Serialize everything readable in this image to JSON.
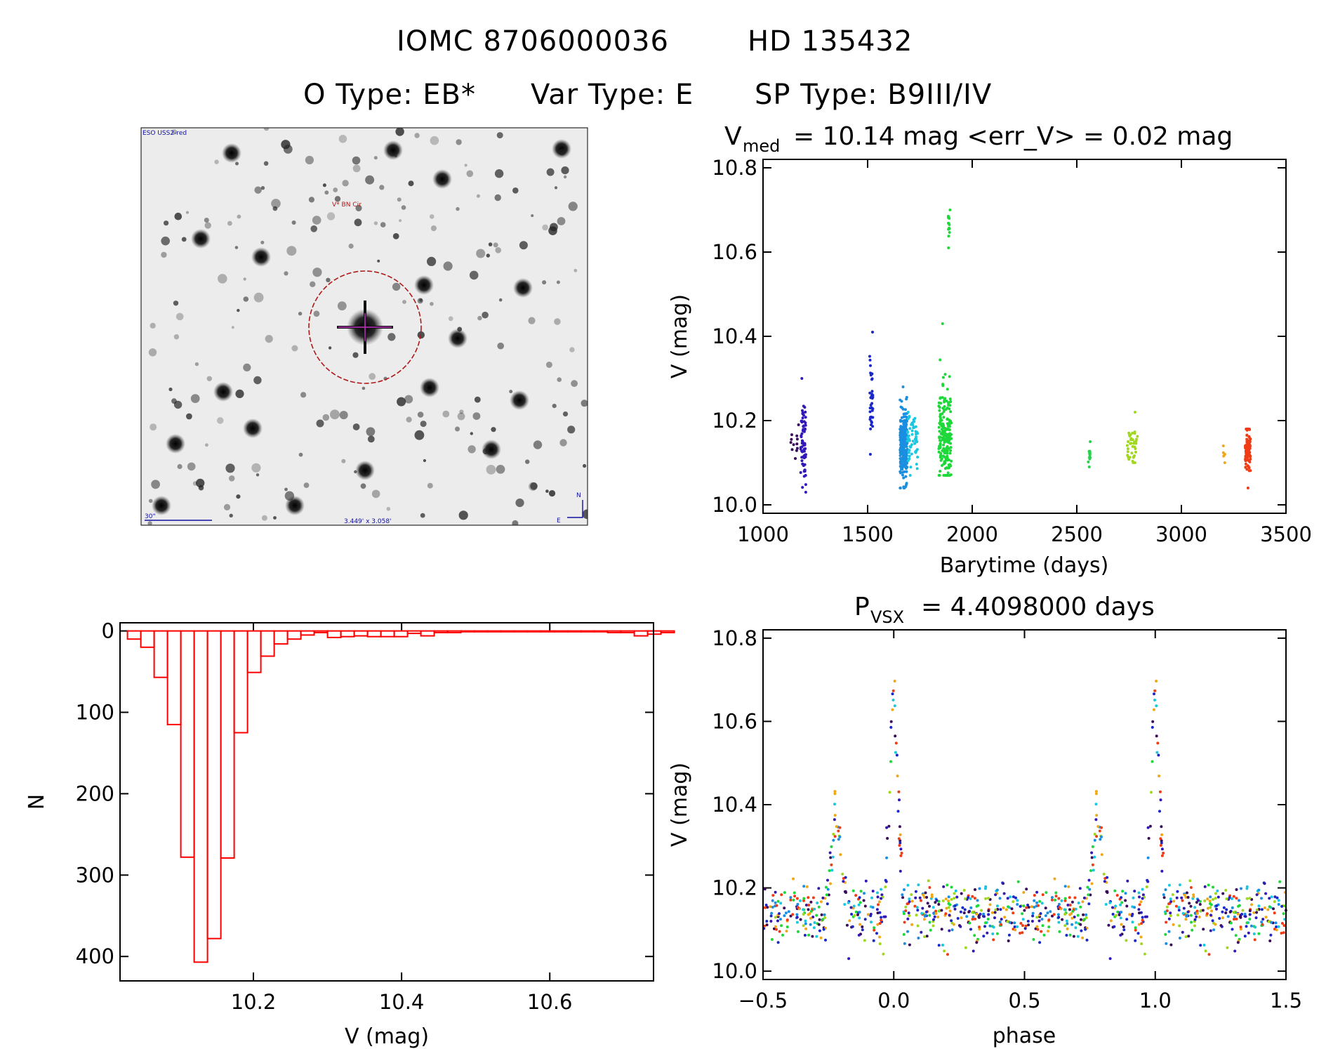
{
  "header": {
    "line1_left": "IOMC 8706000036",
    "line1_right": "HD 135432",
    "line2_otype": "O Type: EB*",
    "line2_vartype": "Var Type: E",
    "line2_sptype": "SP Type: B9III/IV"
  },
  "finder_image": {
    "survey_label": "ESO USS2-red",
    "target_label": "V* BN Cir",
    "scale_label": "30\"",
    "fov_label": "3.449' x 3.058'",
    "north_label": "N",
    "east_label": "E",
    "colors": {
      "target_circle": "#b01818",
      "annotation": "#1010a0"
    }
  },
  "chart_data": [
    {
      "id": "light_curve_time",
      "type": "scatter",
      "title_main": "V",
      "title_sub": "med",
      "title_rest": "= 10.14 mag <err_V> = 0.02 mag",
      "xlabel": "Barytime (days)",
      "ylabel": "V (mag)",
      "xlim": [
        1000,
        3500
      ],
      "ylim": [
        10.82,
        9.98
      ],
      "y_inverted": true,
      "xticks": [
        1000,
        1500,
        2000,
        2500,
        3000,
        3500
      ],
      "xtick_labels": [
        "1000",
        "1500",
        "2000",
        "2500",
        "3000",
        "3500"
      ],
      "yticks": [
        10.0,
        10.2,
        10.4,
        10.6,
        10.8
      ],
      "ytick_labels": [
        "10.0",
        "10.2",
        "10.4",
        "10.6",
        "10.8"
      ],
      "groups": [
        {
          "t0": 1125,
          "t1": 1170,
          "vmin": 10.11,
          "vmax": 10.19,
          "vcen": 10.15,
          "n": 12,
          "color": "#3a0a5a"
        },
        {
          "t0": 1180,
          "t1": 1205,
          "vmin": 10.03,
          "vmax": 10.3,
          "vcen": 10.15,
          "n": 70,
          "color": "#3318b8"
        },
        {
          "t0": 1510,
          "t1": 1525,
          "vmin": 10.12,
          "vmax": 10.41,
          "vcen": 10.25,
          "n": 35,
          "color": "#1a28c8"
        },
        {
          "t0": 1655,
          "t1": 1690,
          "vmin": 10.04,
          "vmax": 10.28,
          "vcen": 10.14,
          "n": 260,
          "color": "#1a8ee0"
        },
        {
          "t0": 1690,
          "t1": 1740,
          "vmin": 10.07,
          "vmax": 10.22,
          "vcen": 10.15,
          "n": 60,
          "color": "#19c8e0"
        },
        {
          "t0": 1840,
          "t1": 1900,
          "vmin": 10.07,
          "vmax": 10.43,
          "vcen": 10.16,
          "n": 200,
          "color": "#1ed83a"
        },
        {
          "t0": 1885,
          "t1": 1895,
          "vmin": 10.61,
          "vmax": 10.7,
          "vcen": 10.66,
          "n": 14,
          "color": "#1ed83a"
        },
        {
          "t0": 2555,
          "t1": 2565,
          "vmin": 10.09,
          "vmax": 10.15,
          "vcen": 10.12,
          "n": 12,
          "color": "#26d24a"
        },
        {
          "t0": 2740,
          "t1": 2790,
          "vmin": 10.1,
          "vmax": 10.22,
          "vcen": 10.14,
          "n": 40,
          "color": "#a0d81e"
        },
        {
          "t0": 3200,
          "t1": 3210,
          "vmin": 10.1,
          "vmax": 10.14,
          "vcen": 10.12,
          "n": 6,
          "color": "#f0a818"
        },
        {
          "t0": 3305,
          "t1": 3330,
          "vmin": 10.04,
          "vmax": 10.18,
          "vcen": 10.13,
          "n": 90,
          "color": "#f03c14"
        }
      ]
    },
    {
      "id": "histogram",
      "type": "bar",
      "xlabel": "V (mag)",
      "ylabel": "N",
      "xlim": [
        10.02,
        10.74
      ],
      "ylim": [
        -10,
        430
      ],
      "xticks": [
        10.2,
        10.4,
        10.6
      ],
      "xtick_labels": [
        "10.2",
        "10.4",
        "10.6"
      ],
      "yticks": [
        0,
        100,
        200,
        300,
        400
      ],
      "ytick_labels": [
        "0",
        "100",
        "200",
        "300",
        "400"
      ],
      "color": "#ff0000",
      "bin_width": 0.018,
      "bin_start": 10.03,
      "counts": [
        10,
        20,
        57,
        115,
        278,
        407,
        378,
        279,
        125,
        51,
        31,
        16,
        10,
        5,
        2,
        8,
        7,
        6,
        7,
        7,
        7,
        3,
        6,
        2,
        2,
        1,
        1,
        1,
        1,
        1,
        1,
        1,
        1,
        1,
        1,
        1,
        2,
        2,
        6,
        4,
        2
      ]
    },
    {
      "id": "phased_curve",
      "type": "scatter",
      "title_main": "P",
      "title_sub": "VSX",
      "title_rest": "= 4.4098000 days",
      "period_days": 4.4098,
      "xlabel": "phase",
      "ylabel": "V (mag)",
      "xlim": [
        -0.5,
        1.5
      ],
      "ylim": [
        10.82,
        9.98
      ],
      "y_inverted": true,
      "xticks": [
        -0.5,
        0.0,
        0.5,
        1.0,
        1.5
      ],
      "xtick_labels": [
        "−0.5",
        "0.0",
        "0.5",
        "1.0",
        "1.5"
      ],
      "yticks": [
        10.0,
        10.2,
        10.4,
        10.6,
        10.8
      ],
      "ytick_labels": [
        "10.0",
        "10.2",
        "10.4",
        "10.6",
        "10.8"
      ],
      "eclipses": [
        {
          "phase": -0.22,
          "depth": 10.4,
          "width": 0.04
        },
        {
          "phase": 0.0,
          "depth": 10.7,
          "width": 0.035
        }
      ],
      "base_level": 10.14,
      "colors": [
        "#3a0a5a",
        "#3318b8",
        "#1a28c8",
        "#1a8ee0",
        "#19c8e0",
        "#1ed83a",
        "#a0d81e",
        "#f0a818",
        "#f03c14"
      ]
    }
  ]
}
